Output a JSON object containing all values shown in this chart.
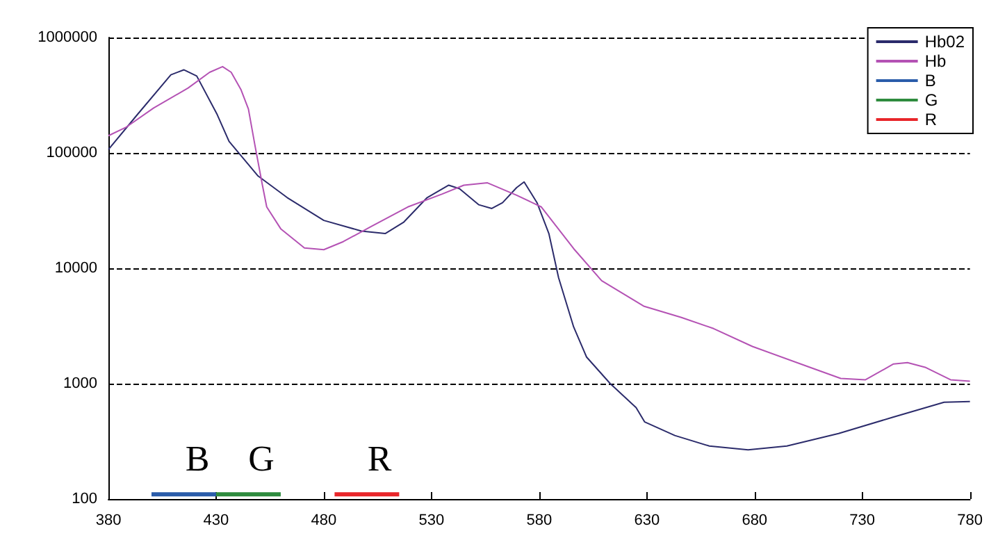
{
  "chart_data": {
    "type": "line",
    "xlim": [
      380,
      780
    ],
    "xticks": [
      380,
      430,
      480,
      530,
      580,
      630,
      680,
      730,
      780
    ],
    "ylim": [
      100,
      1000000
    ],
    "yticks": [
      100,
      1000,
      10000,
      100000,
      1000000
    ],
    "log": "y",
    "grid": "y",
    "legend": "top right",
    "marker": "none",
    "series": [
      {
        "name": "Hb02",
        "color": "#2b2b6b",
        "x": [
          380,
          393,
          409,
          415,
          421,
          430.5,
          436,
          449.5,
          463,
          480,
          497.5,
          508.5,
          517,
          528,
          538,
          543,
          552,
          558,
          563,
          569.5,
          573,
          579,
          584.5,
          589,
          596,
          602,
          613,
          625,
          629,
          643,
          659,
          677,
          695,
          719,
          744,
          768,
          780
        ],
        "values": [
          107000,
          210000,
          475000,
          525000,
          464000,
          215000,
          126000,
          63000,
          41000,
          26000,
          21000,
          20000,
          25000,
          41000,
          52500,
          49000,
          35500,
          33000,
          37000,
          50000,
          56000,
          37000,
          20000,
          8300,
          3100,
          1700,
          1000,
          620,
          465,
          355,
          288,
          267,
          288,
          370,
          510,
          690,
          700
        ]
      },
      {
        "name": "Hb",
        "color": "#b452b4",
        "x": [
          380,
          388,
          401,
          417,
          427,
          433,
          437,
          441.5,
          445,
          448,
          451.5,
          453.5,
          460,
          471,
          480,
          489,
          502,
          519,
          535,
          545,
          556,
          569.5,
          581,
          596,
          609,
          628.5,
          646,
          661,
          679,
          705,
          720,
          731.5,
          744.5,
          751,
          759.5,
          771,
          780
        ],
        "values": [
          141000,
          166000,
          245000,
          365000,
          500000,
          560000,
          500000,
          355000,
          240000,
          117000,
          52500,
          34000,
          22000,
          15000,
          14500,
          17000,
          23000,
          34000,
          44000,
          52500,
          55000,
          43000,
          34000,
          14800,
          7800,
          4700,
          3750,
          3000,
          2100,
          1400,
          1110,
          1080,
          1480,
          1520,
          1380,
          1080,
          1050
        ]
      },
      {
        "name": "B",
        "color": "#2a5caa",
        "x": [
          400,
          430
        ],
        "values": [
          110,
          110
        ]
      },
      {
        "name": "G",
        "color": "#2e8b3e",
        "x": [
          430,
          460
        ],
        "values": [
          110,
          110
        ]
      },
      {
        "name": "R",
        "color": "#e8262a",
        "x": [
          485,
          515
        ],
        "values": [
          110,
          110
        ]
      }
    ],
    "annotations": [
      "B",
      "G",
      "R"
    ]
  }
}
